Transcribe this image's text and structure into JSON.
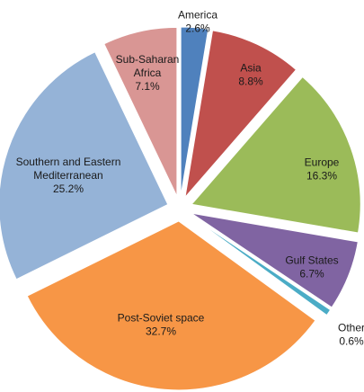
{
  "chart_data": {
    "type": "pie",
    "title": "",
    "exploded": true,
    "slices": [
      {
        "category": "America",
        "value": 2.6,
        "label": "2.6%",
        "color": "#4F81BD"
      },
      {
        "category": "Asia",
        "value": 8.8,
        "label": "8.8%",
        "color": "#C0504D"
      },
      {
        "category": "Europe",
        "value": 16.3,
        "label": "16.3%",
        "color": "#9BBB59"
      },
      {
        "category": "Gulf States",
        "value": 6.7,
        "label": "6.7%",
        "color": "#8064A2"
      },
      {
        "category": "Other",
        "value": 0.6,
        "label": "0.6%",
        "color": "#4BACC6"
      },
      {
        "category": "Post-Soviet space",
        "value": 32.7,
        "label": "32.7%",
        "color": "#F79646"
      },
      {
        "category": "Southern and Eastern Mediterranean",
        "value": 25.2,
        "label": "25.2%",
        "color": "#95B3D7"
      },
      {
        "category": "Sub-Saharan Africa",
        "value": 7.1,
        "label": "7.1%",
        "color": "#D99694"
      }
    ]
  }
}
